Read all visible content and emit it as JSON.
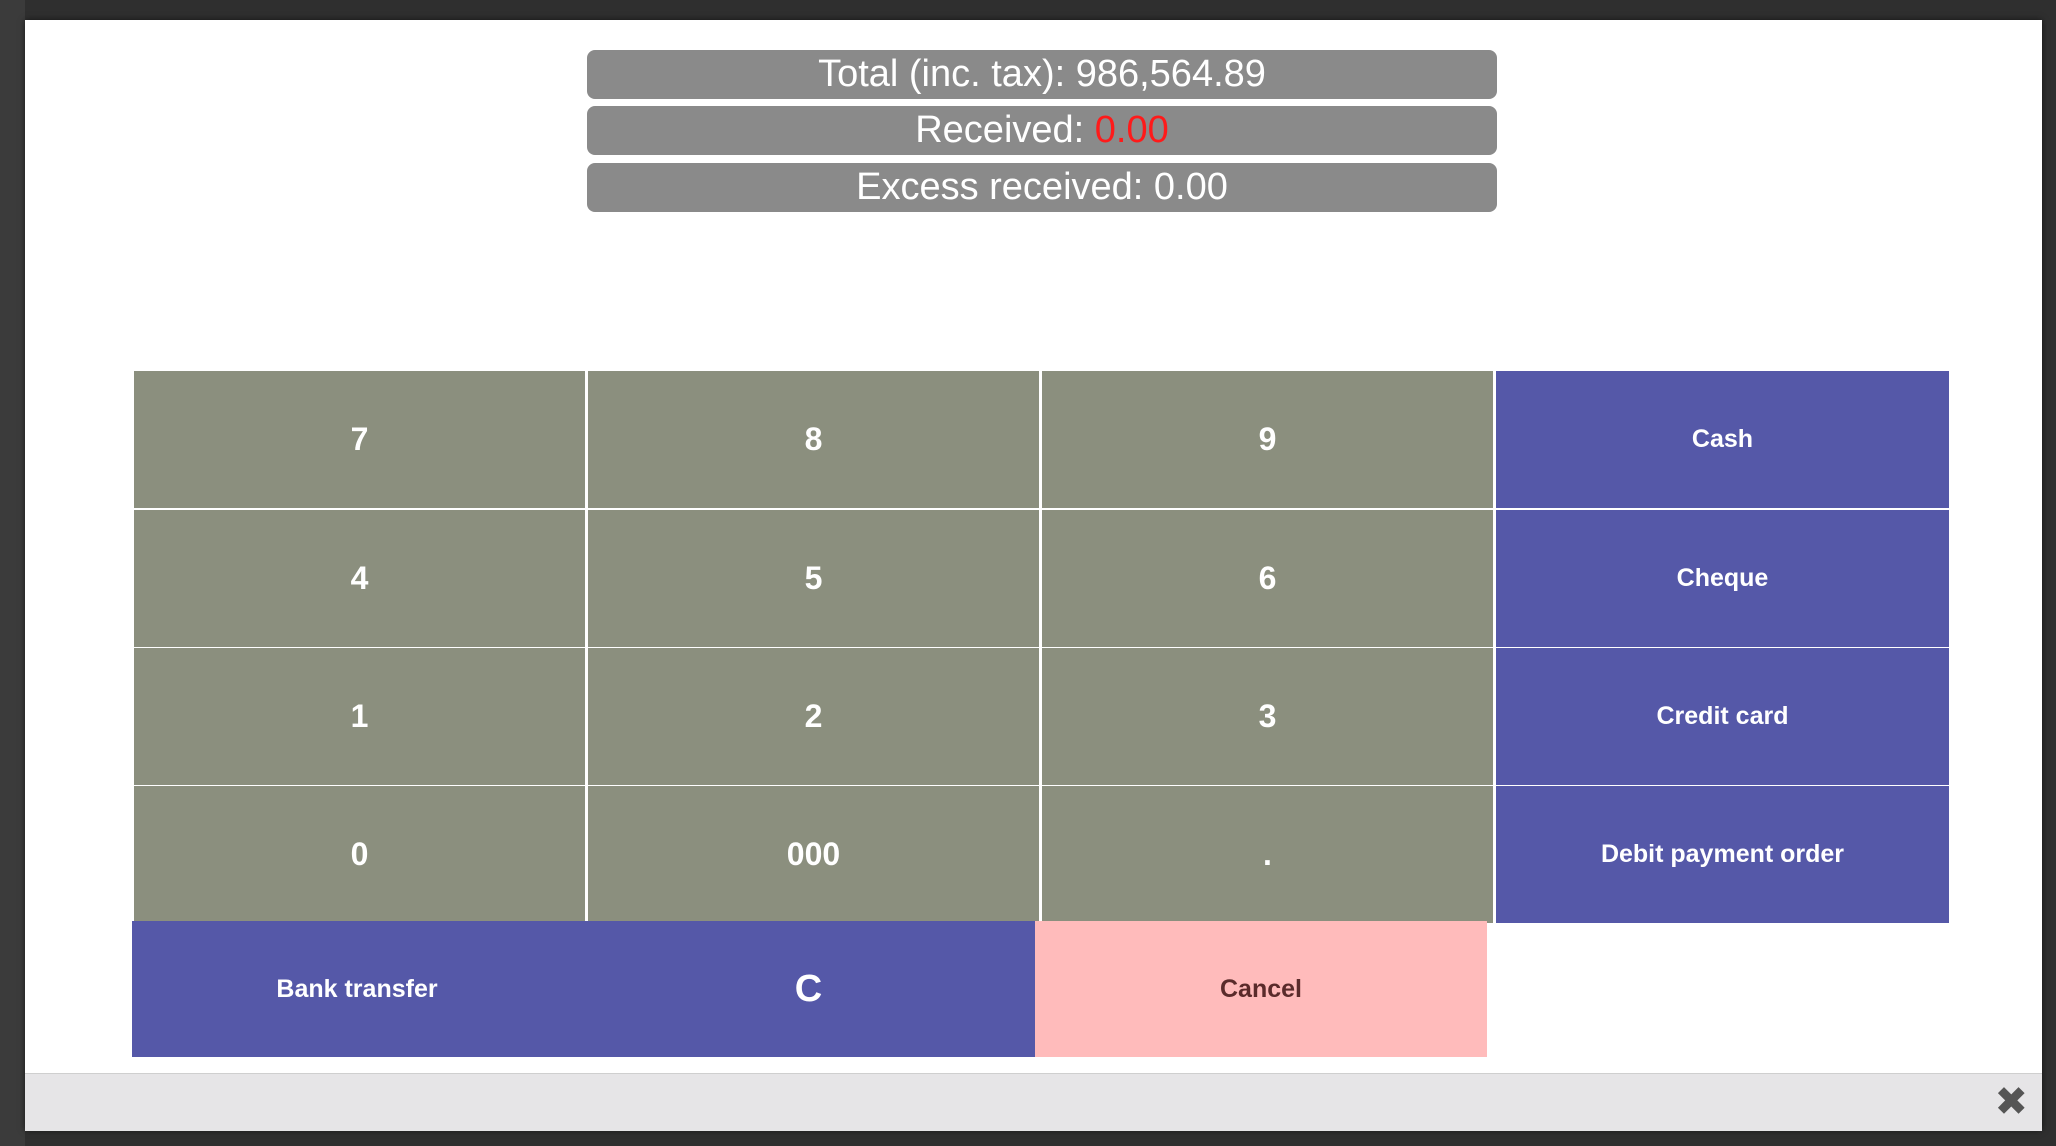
{
  "summary": {
    "total_label": "Total (inc. tax): ",
    "total_value": "986,564.89",
    "received_label": "Received: ",
    "received_value": "0.00",
    "excess_label": "Excess received: ",
    "excess_value": "0.00"
  },
  "keypad": {
    "k7": "7",
    "k8": "8",
    "k9": "9",
    "k4": "4",
    "k5": "5",
    "k6": "6",
    "k1": "1",
    "k2": "2",
    "k3": "3",
    "k0": "0",
    "k000": "000",
    "kdot": "."
  },
  "payment_methods": {
    "cash": "Cash",
    "cheque": "Cheque",
    "credit_card": "Credit card",
    "debit_payment_order": "Debit payment order",
    "bank_transfer": "Bank transfer"
  },
  "actions": {
    "clear": "C",
    "cancel": "Cancel"
  },
  "footer": {
    "close_icon": "✖"
  },
  "colors": {
    "numpad": "#8b8f7e",
    "payment": "#5558a8",
    "cancel": "#ffbbbb",
    "received_value": "#ff1a1a"
  }
}
